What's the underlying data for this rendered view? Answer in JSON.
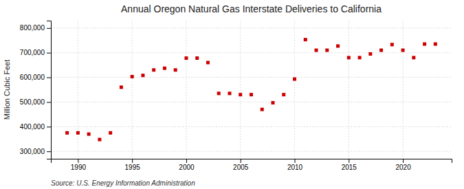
{
  "chart_data": {
    "type": "scatter",
    "title": "Annual Oregon Natural Gas Interstate Deliveries to California",
    "ylabel": "Million Cubic Feet",
    "source": "Source: U.S. Energy Information Administration",
    "x": [
      1989,
      1990,
      1991,
      1992,
      1993,
      1994,
      1995,
      1996,
      1997,
      1998,
      1999,
      2000,
      2001,
      2002,
      2003,
      2004,
      2005,
      2006,
      2007,
      2008,
      2009,
      2010,
      2011,
      2012,
      2013,
      2014,
      2015,
      2016,
      2017,
      2018,
      2019,
      2020,
      2021,
      2022,
      2023
    ],
    "values": [
      375000,
      375000,
      370000,
      348000,
      375000,
      560000,
      603000,
      608000,
      630000,
      637000,
      630000,
      678000,
      678000,
      660000,
      535000,
      535000,
      530000,
      530000,
      470000,
      497000,
      530000,
      593000,
      753000,
      710000,
      710000,
      727000,
      680000,
      680000,
      695000,
      710000,
      733000,
      710000,
      680000,
      735000,
      735000
    ],
    "color": "#cc0000",
    "marker": "square",
    "grid": true,
    "xlim": [
      1987.5,
      2024.5
    ],
    "xticks": [
      1990,
      1995,
      2000,
      2005,
      2010,
      2015,
      2020
    ],
    "ylim": [
      270000,
      830000
    ],
    "yticks": [
      {
        "value": 300000,
        "label": "300,000"
      },
      {
        "value": 400000,
        "label": "400,000"
      },
      {
        "value": 500000,
        "label": "500,000"
      },
      {
        "value": 600000,
        "label": "600,000"
      },
      {
        "value": 700000,
        "label": "700,000"
      },
      {
        "value": 800000,
        "label": "800,000"
      }
    ]
  }
}
